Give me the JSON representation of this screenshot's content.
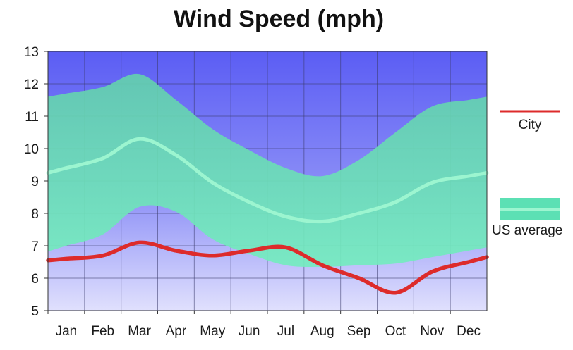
{
  "chart_data": {
    "type": "area",
    "title": "Wind Speed (mph)",
    "categories": [
      "Jan",
      "Feb",
      "Mar",
      "Apr",
      "May",
      "Jun",
      "Jul",
      "Aug",
      "Sep",
      "Oct",
      "Nov",
      "Dec"
    ],
    "ylim": [
      5,
      13
    ],
    "yticks": [
      5,
      6,
      7,
      8,
      9,
      10,
      11,
      12,
      13
    ],
    "grid": true,
    "legend_position": "right",
    "series": [
      {
        "name": "City",
        "type": "line",
        "color": "#dd2b2b",
        "values": [
          6.6,
          6.7,
          7.1,
          6.85,
          6.7,
          6.85,
          6.95,
          6.4,
          6.0,
          5.55,
          6.2,
          6.5
        ]
      },
      {
        "name": "US average",
        "type": "line-with-band",
        "color": "#9cf5d0",
        "band_color": "#5ce0b4",
        "values": [
          9.4,
          9.7,
          10.3,
          9.8,
          8.95,
          8.35,
          7.9,
          7.75,
          8.0,
          8.35,
          8.95,
          9.15
        ],
        "band_upper": [
          11.7,
          11.9,
          12.3,
          11.5,
          10.6,
          9.95,
          9.4,
          9.15,
          9.65,
          10.5,
          11.3,
          11.5
        ],
        "band_lower": [
          7.0,
          7.35,
          8.2,
          8.05,
          7.2,
          6.75,
          6.4,
          6.35,
          6.4,
          6.45,
          6.65,
          6.85
        ]
      }
    ]
  }
}
